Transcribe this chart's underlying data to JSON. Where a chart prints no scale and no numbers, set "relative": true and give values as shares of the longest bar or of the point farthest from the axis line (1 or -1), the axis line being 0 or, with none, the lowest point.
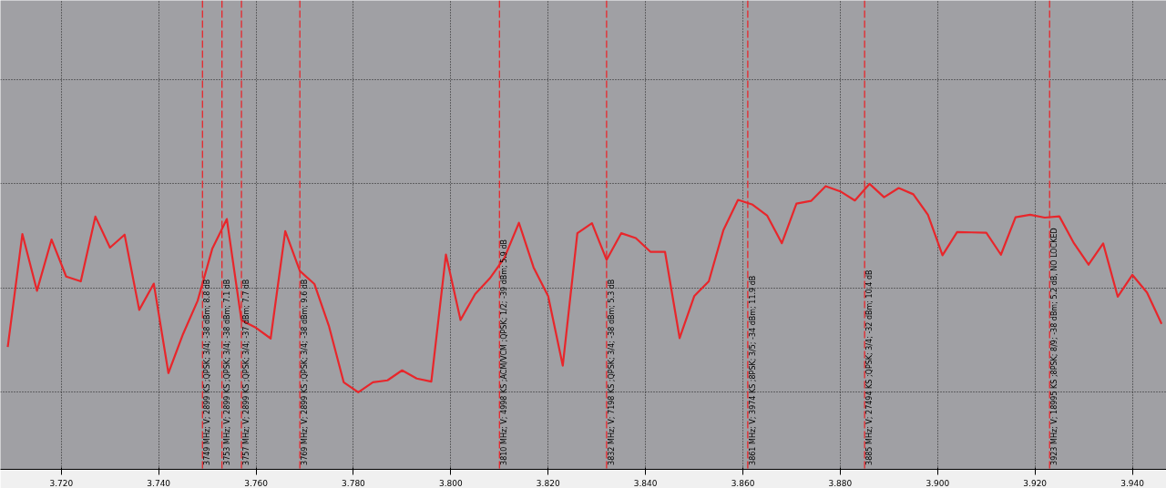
{
  "chart_data": {
    "type": "line",
    "relative": true,
    "x": [
      3.709,
      3.712,
      3.715,
      3.718,
      3.721,
      3.724,
      3.727,
      3.73,
      3.733,
      3.736,
      3.739,
      3.742,
      3.745,
      3.748,
      3.751,
      3.754,
      3.757,
      3.76,
      3.763,
      3.766,
      3.769,
      3.772,
      3.775,
      3.778,
      3.781,
      3.784,
      3.787,
      3.79,
      3.793,
      3.796,
      3.799,
      3.802,
      3.805,
      3.808,
      3.811,
      3.814,
      3.817,
      3.82,
      3.823,
      3.826,
      3.829,
      3.832,
      3.835,
      3.838,
      3.841,
      3.844,
      3.847,
      3.85,
      3.853,
      3.856,
      3.859,
      3.862,
      3.865,
      3.868,
      3.871,
      3.874,
      3.877,
      3.88,
      3.883,
      3.886,
      3.889,
      3.892,
      3.895,
      3.898,
      3.901,
      3.904,
      3.907,
      3.91,
      3.913,
      3.916,
      3.919,
      3.922,
      3.925,
      3.928,
      3.931,
      3.934,
      3.937,
      3.94,
      3.943,
      3.946
    ],
    "series": [
      {
        "color": "#e8262b",
        "values": [
          0.217,
          0.759,
          0.487,
          0.733,
          0.555,
          0.532,
          0.843,
          0.694,
          0.756,
          0.395,
          0.521,
          0.092,
          0.279,
          0.439,
          0.688,
          0.831,
          0.345,
          0.309,
          0.258,
          0.773,
          0.582,
          0.519,
          0.315,
          0.048,
          0,
          0.048,
          0.057,
          0.105,
          0.066,
          0.051,
          0.661,
          0.347,
          0.471,
          0.546,
          0.644,
          0.813,
          0.599,
          0.461,
          0.128,
          0.763,
          0.811,
          0.635,
          0.763,
          0.74,
          0.674,
          0.674,
          0.26,
          0.461,
          0.532,
          0.778,
          0.923,
          0.9,
          0.847,
          0.715,
          0.905,
          0.918,
          0.989,
          0.964,
          0.92,
          1,
          0.936,
          0.98,
          0.95,
          0.852,
          0.657,
          0.769,
          0.767,
          0.765,
          0.66,
          0.84,
          0.852,
          0.838,
          0.844,
          0.715,
          0.612,
          0.714,
          0.458,
          0.563,
          0.479,
          0.328
        ]
      }
    ],
    "xlim": [
      3.7075,
      3.947
    ],
    "xticks": [
      {
        "value": 3.72,
        "label": "3.720"
      },
      {
        "value": 3.74,
        "label": "3.740"
      },
      {
        "value": 3.76,
        "label": "3.760"
      },
      {
        "value": 3.78,
        "label": "3.780"
      },
      {
        "value": 3.8,
        "label": "3.800"
      },
      {
        "value": 3.82,
        "label": "3.820"
      },
      {
        "value": 3.84,
        "label": "3.840"
      },
      {
        "value": 3.86,
        "label": "3.860"
      },
      {
        "value": 3.88,
        "label": "3.880"
      },
      {
        "value": 3.9,
        "label": "3.900"
      },
      {
        "value": 3.92,
        "label": "3.920"
      },
      {
        "value": 3.94,
        "label": "3.940"
      }
    ],
    "tick_labels": "x",
    "grid": true,
    "ref_lines": [
      {
        "axis": "x",
        "value": 3.749,
        "label": "3749 MHz; V; 2899 KS ;QPSK; 3/4; -38 dBm; 8.8 dB",
        "color": "#e8262b",
        "line_style": "dashed"
      },
      {
        "axis": "x",
        "value": 3.753,
        "label": "3753 MHz; V; 2899 KS ;QPSK; 3/4; -38 dBm; 7.1 dB",
        "color": "#e8262b",
        "line_style": "dashed"
      },
      {
        "axis": "x",
        "value": 3.757,
        "label": "3757 MHz; V; 2899 KS ;QPSK; 3/4; -37 dBm; 7.7 dB",
        "color": "#e8262b",
        "line_style": "dashed"
      },
      {
        "axis": "x",
        "value": 3.769,
        "label": "3769 MHz; V; 2899 KS ;QPSK; 3/4; -38 dBm; 9.6 dB",
        "color": "#e8262b",
        "line_style": "dashed"
      },
      {
        "axis": "x",
        "value": 3.81,
        "label": "3810 MHz; V; 4998 KS ;ACM/VCM ;QPSK; 1/2; -39 dBm; 5.9 dB",
        "color": "#e8262b",
        "line_style": "dashed"
      },
      {
        "axis": "x",
        "value": 3.832,
        "label": "3832 MHz; V; 7198 KS ;QPSK; 3/4; -38 dBm; 5.3 dB",
        "color": "#e8262b",
        "line_style": "dashed"
      },
      {
        "axis": "x",
        "value": 3.861,
        "label": "3861 MHz; V; 3974 KS ;8PSK; 3/5; -34 dBm; 11.9 dB",
        "color": "#e8262b",
        "line_style": "dashed"
      },
      {
        "axis": "x",
        "value": 3.885,
        "label": "3885 MHz; V; 27494 KS ;QPSK; 3/4; -32 dBm; 10.4 dB",
        "color": "#e8262b",
        "line_style": "dashed"
      },
      {
        "axis": "x",
        "value": 3.923,
        "label": "3923 MHz; V; 18995 KS ;8PSK; 8/9; -38 dBm; 5.2 dB, NO LOCKED",
        "color": "#e8262b",
        "line_style": "dashed"
      }
    ]
  }
}
